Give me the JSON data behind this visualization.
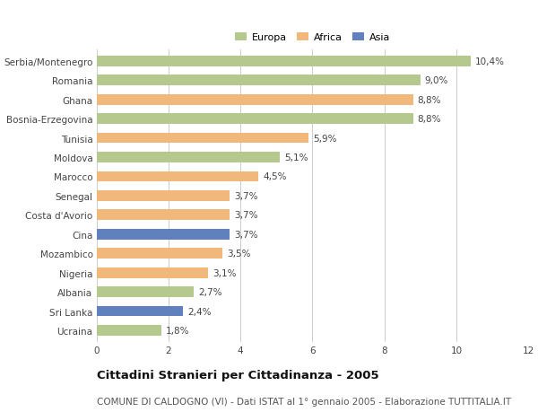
{
  "categories": [
    "Serbia/Montenegro",
    "Romania",
    "Ghana",
    "Bosnia-Erzegovina",
    "Tunisia",
    "Moldova",
    "Marocco",
    "Senegal",
    "Costa d'Avorio",
    "Cina",
    "Mozambico",
    "Nigeria",
    "Albania",
    "Sri Lanka",
    "Ucraina"
  ],
  "values": [
    10.4,
    9.0,
    8.8,
    8.8,
    5.9,
    5.1,
    4.5,
    3.7,
    3.7,
    3.7,
    3.5,
    3.1,
    2.7,
    2.4,
    1.8
  ],
  "labels": [
    "10,4%",
    "9,0%",
    "8,8%",
    "8,8%",
    "5,9%",
    "5,1%",
    "4,5%",
    "3,7%",
    "3,7%",
    "3,7%",
    "3,5%",
    "3,1%",
    "2,7%",
    "2,4%",
    "1,8%"
  ],
  "continents": [
    "Europa",
    "Europa",
    "Africa",
    "Europa",
    "Africa",
    "Europa",
    "Africa",
    "Africa",
    "Africa",
    "Asia",
    "Africa",
    "Africa",
    "Europa",
    "Asia",
    "Europa"
  ],
  "colors": {
    "Europa": "#b5c98e",
    "Africa": "#f0b87a",
    "Asia": "#6080be"
  },
  "legend_labels": [
    "Europa",
    "Africa",
    "Asia"
  ],
  "xlim": [
    0,
    12
  ],
  "xticks": [
    0,
    2,
    4,
    6,
    8,
    10,
    12
  ],
  "title": "Cittadini Stranieri per Cittadinanza - 2005",
  "subtitle": "COMUNE DI CALDOGNO (VI) - Dati ISTAT al 1° gennaio 2005 - Elaborazione TUTTITALIA.IT",
  "background_color": "#ffffff",
  "bar_height": 0.55,
  "grid_color": "#cccccc",
  "label_fontsize": 7.5,
  "tick_fontsize": 7.5,
  "title_fontsize": 9.5,
  "subtitle_fontsize": 7.5
}
